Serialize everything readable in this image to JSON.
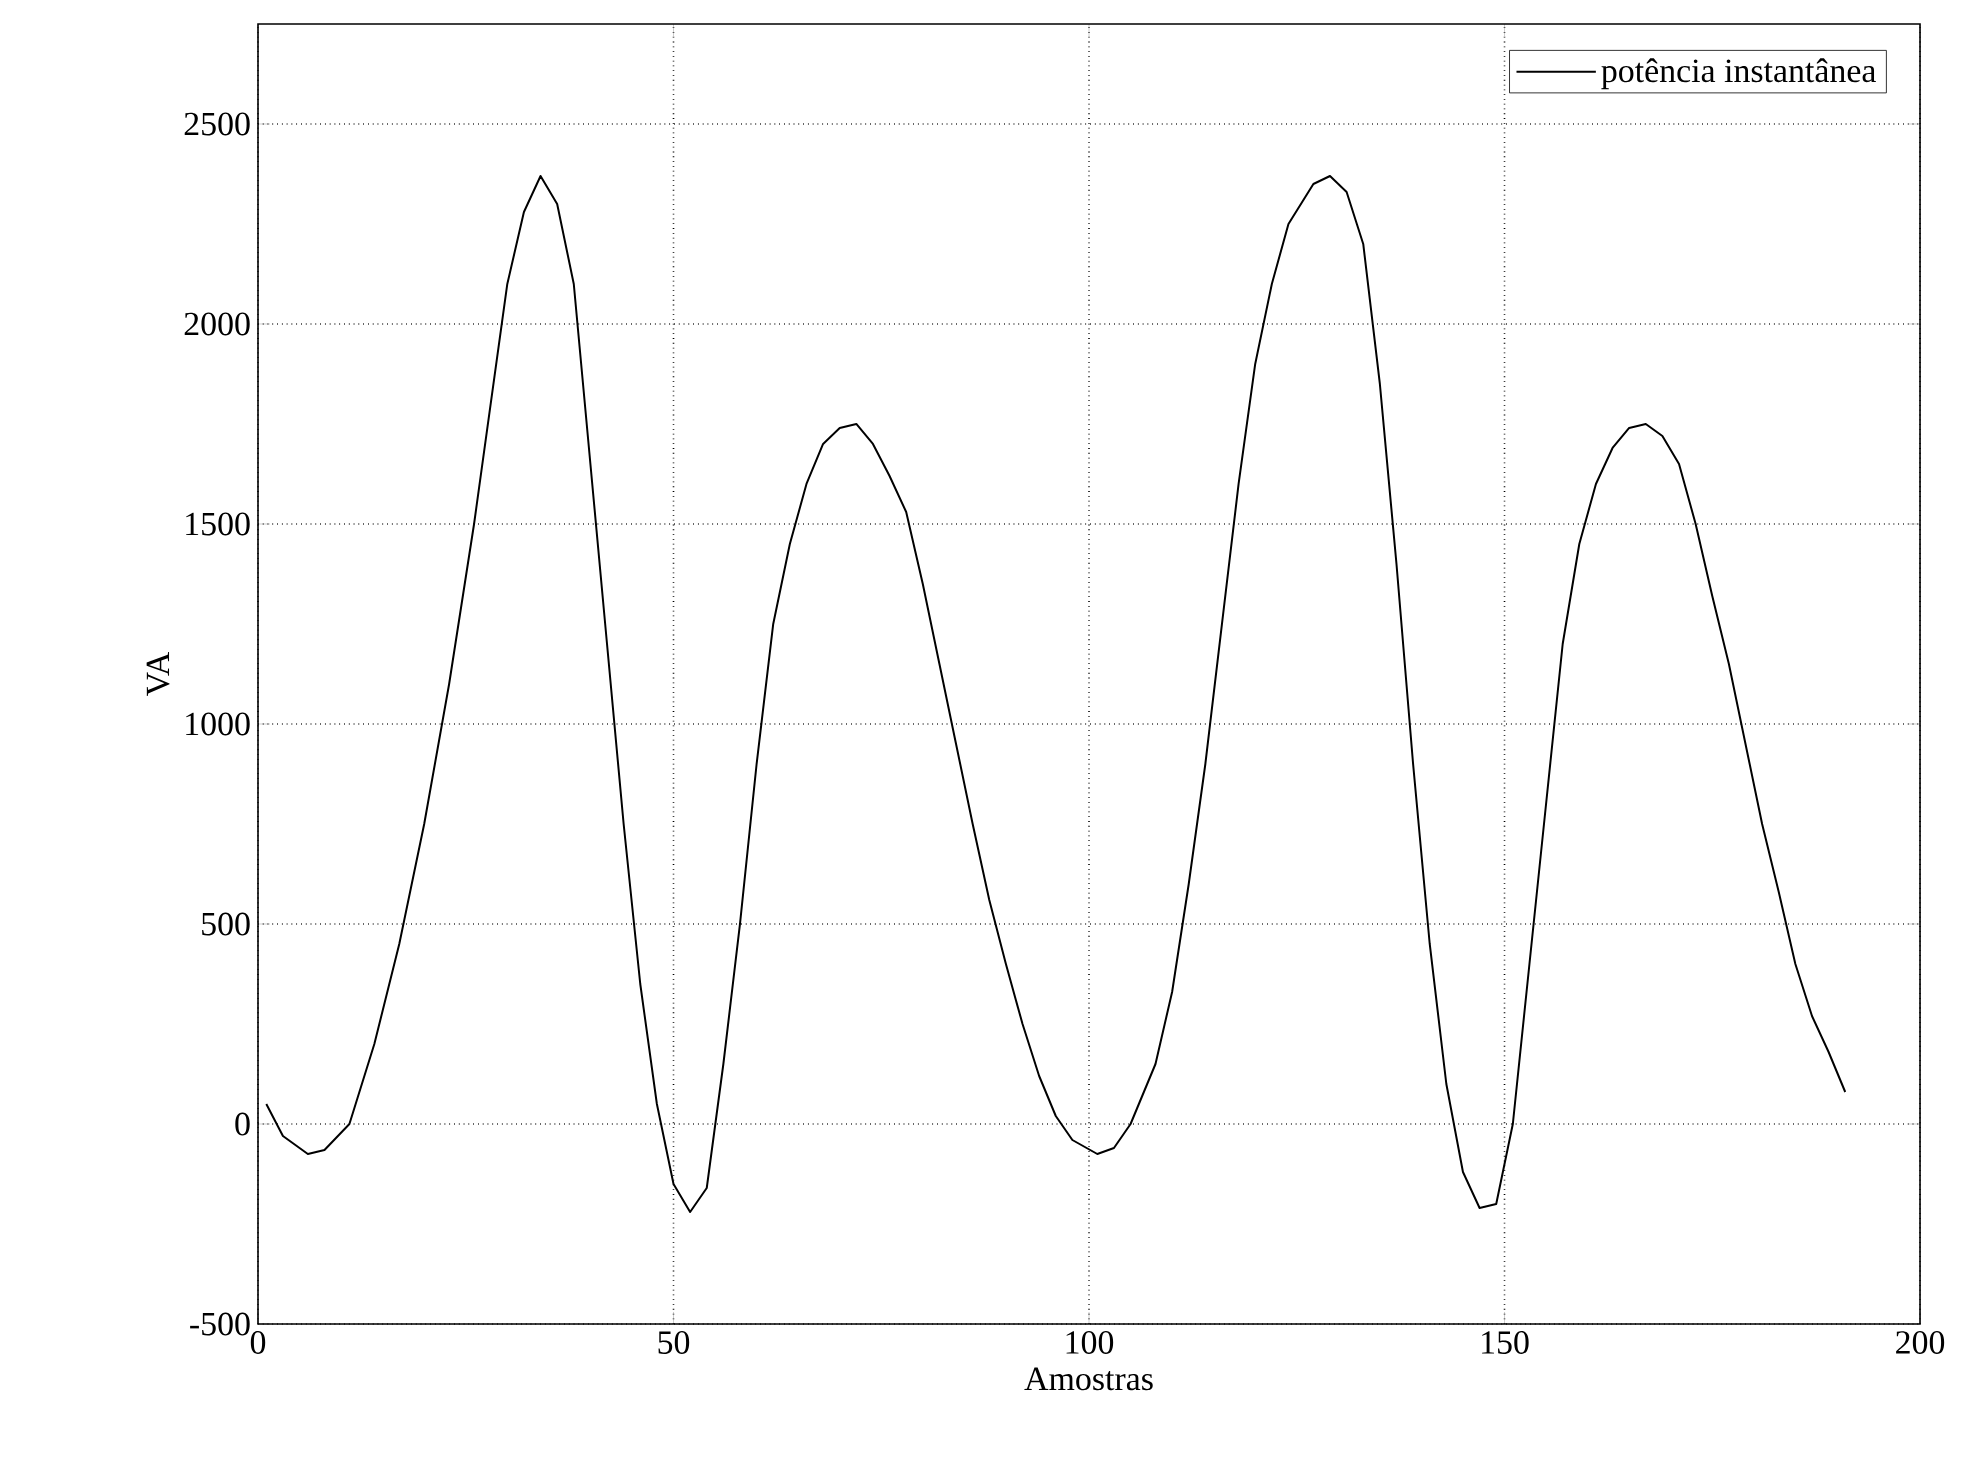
{
  "chart_data": {
    "type": "line",
    "xlabel": "Amostras",
    "ylabel": "VA",
    "x": [
      1,
      3,
      6,
      8,
      11,
      14,
      17,
      20,
      23,
      26,
      28,
      30,
      32,
      34,
      36,
      38,
      40,
      42,
      44,
      46,
      48,
      50,
      52,
      54,
      56,
      58,
      60,
      62,
      64,
      66,
      68,
      70,
      72,
      74,
      76,
      78,
      80,
      82,
      84,
      86,
      88,
      90,
      92,
      94,
      96,
      98,
      101,
      103,
      105,
      108,
      110,
      112,
      114,
      116,
      118,
      120,
      122,
      124,
      127,
      129,
      131,
      133,
      135,
      137,
      139,
      141,
      143,
      145,
      147,
      149,
      151,
      153,
      155,
      157,
      159,
      161,
      163,
      165,
      167,
      169,
      171,
      173,
      175,
      177,
      179,
      181,
      183,
      185,
      187,
      189,
      191
    ],
    "series": [
      {
        "name": "potência instantânea",
        "color": "#000000",
        "values": [
          50,
          -30,
          -75,
          -65,
          0,
          200,
          450,
          750,
          1100,
          1500,
          1800,
          2100,
          2280,
          2370,
          2300,
          2100,
          1650,
          1200,
          750,
          350,
          50,
          -150,
          -220,
          -160,
          150,
          500,
          900,
          1250,
          1450,
          1600,
          1700,
          1740,
          1750,
          1700,
          1620,
          1530,
          1350,
          1150,
          950,
          750,
          560,
          400,
          250,
          120,
          20,
          -40,
          -75,
          -60,
          0,
          150,
          330,
          600,
          900,
          1250,
          1600,
          1900,
          2100,
          2250,
          2350,
          2370,
          2330,
          2200,
          1850,
          1400,
          900,
          450,
          100,
          -120,
          -210,
          -200,
          0,
          400,
          800,
          1200,
          1450,
          1600,
          1690,
          1740,
          1750,
          1720,
          1650,
          1500,
          1320,
          1150,
          950,
          750,
          580,
          400,
          270,
          180,
          80
        ]
      }
    ],
    "xlim": [
      0,
      200
    ],
    "ylim": [
      -500,
      2750
    ],
    "xticks": [
      0,
      50,
      100,
      150,
      200
    ],
    "yticks": [
      -500,
      0,
      500,
      1000,
      1500,
      2000,
      2500
    ],
    "grid": true,
    "legend": "top right",
    "marker": "none",
    "line_style": "solid"
  }
}
